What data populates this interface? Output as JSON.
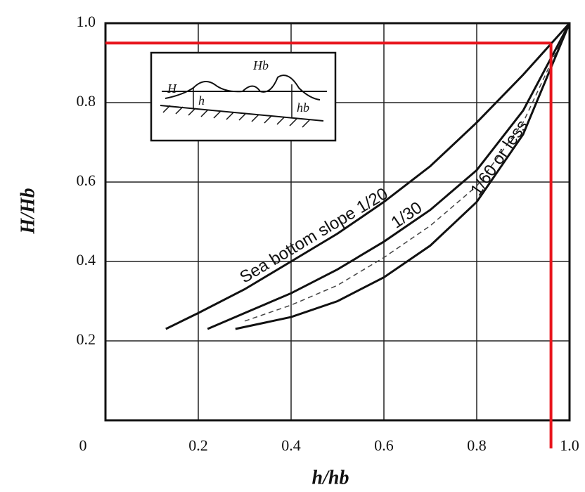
{
  "chart_data": {
    "type": "line",
    "xlabel": "h/hb",
    "ylabel": "H/Hb",
    "xlim": [
      0,
      1
    ],
    "ylim": [
      0,
      1
    ],
    "xticks": [
      {
        "value": 0,
        "label": "0"
      },
      0.2,
      0.4,
      0.6,
      0.8,
      {
        "value": 1,
        "label": "1.0"
      }
    ],
    "yticks": [
      0.2,
      0.4,
      0.6,
      0.8,
      {
        "value": 1,
        "label": "1.0"
      }
    ],
    "grid": true,
    "series": [
      {
        "name": "Sea bottom slope 1/20",
        "color": "#111111",
        "x": [
          0.13,
          0.2,
          0.3,
          0.4,
          0.5,
          0.6,
          0.7,
          0.8,
          0.9,
          1.0
        ],
        "values": [
          0.23,
          0.27,
          0.33,
          0.4,
          0.47,
          0.55,
          0.64,
          0.75,
          0.87,
          1.0
        ]
      },
      {
        "name": "1/30",
        "color": "#111111",
        "x": [
          0.22,
          0.3,
          0.4,
          0.5,
          0.6,
          0.7,
          0.8,
          0.9,
          1.0
        ],
        "values": [
          0.23,
          0.27,
          0.32,
          0.38,
          0.45,
          0.53,
          0.63,
          0.78,
          1.0
        ]
      },
      {
        "color": "#444444",
        "dashed": true,
        "x": [
          0.3,
          0.4,
          0.5,
          0.6,
          0.7,
          0.8,
          0.9,
          1.0
        ],
        "values": [
          0.25,
          0.29,
          0.34,
          0.41,
          0.49,
          0.59,
          0.75,
          1.0
        ]
      },
      {
        "name": "1/60 or less",
        "color": "#111111",
        "x": [
          0.28,
          0.4,
          0.5,
          0.6,
          0.7,
          0.8,
          0.9,
          1.0
        ],
        "values": [
          0.23,
          0.26,
          0.3,
          0.36,
          0.44,
          0.55,
          0.72,
          1.0
        ]
      }
    ],
    "reference": {
      "x": 0.96,
      "y": 0.95,
      "color": "#e8141c"
    },
    "inset_labels": [
      "Hb",
      "H",
      "h",
      "hb"
    ]
  }
}
